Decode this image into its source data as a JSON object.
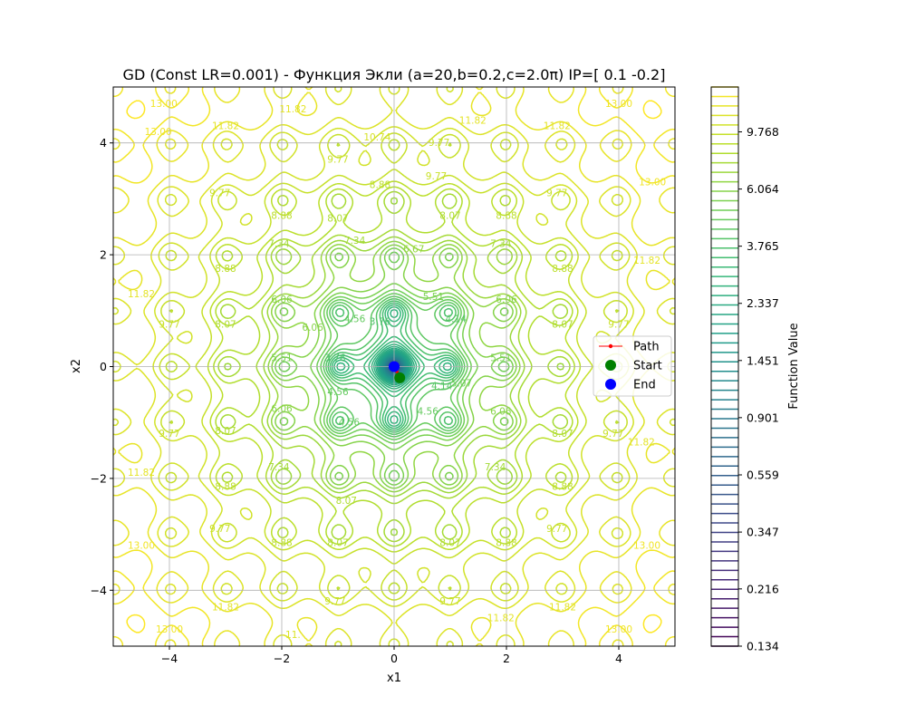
{
  "chart_data": {
    "type": "contour",
    "title": "GD (Const LR=0.001) - Функция Экли (a=20,b=0.2,c=2.0π) IP=[ 0.1 -0.2]",
    "xlabel": "x1",
    "ylabel": "x2",
    "xlim": [
      -5,
      5
    ],
    "ylim": [
      -5,
      5
    ],
    "x_ticks": [
      -4,
      -2,
      0,
      2,
      4
    ],
    "y_ticks": [
      -4,
      -2,
      0,
      2,
      4
    ],
    "x_tick_labels": [
      "−4",
      "−2",
      "0",
      "2",
      "4"
    ],
    "y_tick_labels": [
      "−4",
      "−2",
      "0",
      "2",
      "4"
    ],
    "grid": true,
    "function": {
      "a": 20,
      "b": 0.2,
      "c_over_pi": 2.0
    },
    "contour_labels": [
      {
        "text": "13.00",
        "x": -4.1,
        "y": 4.7
      },
      {
        "text": "13.00",
        "x": -4.2,
        "y": 4.2
      },
      {
        "text": "11.82",
        "x": -3.0,
        "y": 4.3
      },
      {
        "text": "11.82",
        "x": -1.8,
        "y": 4.6
      },
      {
        "text": "10.74",
        "x": -0.3,
        "y": 4.1
      },
      {
        "text": "9.77",
        "x": 0.8,
        "y": 4.0
      },
      {
        "text": "11.82",
        "x": 1.4,
        "y": 4.4
      },
      {
        "text": "11.82",
        "x": 2.9,
        "y": 4.3
      },
      {
        "text": "13.00",
        "x": 4.0,
        "y": 4.7
      },
      {
        "text": "9.77",
        "x": -1.0,
        "y": 3.7
      },
      {
        "text": "9.77",
        "x": 0.75,
        "y": 3.4
      },
      {
        "text": "9.77",
        "x": -3.1,
        "y": 3.1
      },
      {
        "text": "8.88",
        "x": -0.25,
        "y": 3.25
      },
      {
        "text": "9.77",
        "x": 2.9,
        "y": 3.1
      },
      {
        "text": "13.00",
        "x": 4.6,
        "y": 3.3
      },
      {
        "text": "8.88",
        "x": -2.0,
        "y": 2.7
      },
      {
        "text": "8.07",
        "x": -1.0,
        "y": 2.65
      },
      {
        "text": "8.07",
        "x": 1.0,
        "y": 2.7
      },
      {
        "text": "8.88",
        "x": 2.0,
        "y": 2.7
      },
      {
        "text": "7.34",
        "x": -2.05,
        "y": 2.2
      },
      {
        "text": "7.34",
        "x": -0.7,
        "y": 2.25
      },
      {
        "text": "6.67",
        "x": 0.35,
        "y": 2.1
      },
      {
        "text": "7.34",
        "x": 1.9,
        "y": 2.2
      },
      {
        "text": "8.88",
        "x": -3.0,
        "y": 1.75
      },
      {
        "text": "8.88",
        "x": 3.0,
        "y": 1.75
      },
      {
        "text": "11.82",
        "x": 4.5,
        "y": 1.9
      },
      {
        "text": "11.82",
        "x": -4.5,
        "y": 1.3
      },
      {
        "text": "6.06",
        "x": -2.0,
        "y": 1.2
      },
      {
        "text": "5.51",
        "x": 0.7,
        "y": 1.25
      },
      {
        "text": "6.06",
        "x": 2.0,
        "y": 1.2
      },
      {
        "text": "6.06",
        "x": -1.45,
        "y": 0.7
      },
      {
        "text": "4.56",
        "x": -0.7,
        "y": 0.85
      },
      {
        "text": "3.76",
        "x": -0.25,
        "y": 0.8
      },
      {
        "text": "4.14",
        "x": 1.1,
        "y": 0.85
      },
      {
        "text": "9.77",
        "x": -4.0,
        "y": 0.75
      },
      {
        "text": "8.07",
        "x": -3.0,
        "y": 0.75
      },
      {
        "text": "8.07",
        "x": 3.0,
        "y": 0.75
      },
      {
        "text": "9.77",
        "x": 4.0,
        "y": 0.75
      },
      {
        "text": "5.51",
        "x": -2.0,
        "y": 0.15
      },
      {
        "text": "3.76",
        "x": -1.05,
        "y": 0.15
      },
      {
        "text": "5.51",
        "x": 1.9,
        "y": 0.15
      },
      {
        "text": "4.14",
        "x": 0.85,
        "y": -0.35
      },
      {
        "text": "5.07",
        "x": 1.2,
        "y": -0.3
      },
      {
        "text": "4.56",
        "x": -1.0,
        "y": -0.45
      },
      {
        "text": "6.06",
        "x": -2.0,
        "y": -0.75
      },
      {
        "text": "6.06",
        "x": 1.9,
        "y": -0.8
      },
      {
        "text": "4.56",
        "x": 0.6,
        "y": -0.8
      },
      {
        "text": "4.56",
        "x": -0.8,
        "y": -1.0
      },
      {
        "text": "9.77",
        "x": -4.0,
        "y": -1.2
      },
      {
        "text": "8.07",
        "x": -3.0,
        "y": -1.15
      },
      {
        "text": "8.07",
        "x": 3.0,
        "y": -1.2
      },
      {
        "text": "9.77",
        "x": 3.9,
        "y": -1.2
      },
      {
        "text": "11.82",
        "x": 4.4,
        "y": -1.35
      },
      {
        "text": "11.82",
        "x": -4.5,
        "y": -1.9
      },
      {
        "text": "7.34",
        "x": -2.05,
        "y": -1.8
      },
      {
        "text": "7.34",
        "x": 1.8,
        "y": -1.8
      },
      {
        "text": "8.88",
        "x": -3.0,
        "y": -2.15
      },
      {
        "text": "8.07",
        "x": -0.85,
        "y": -2.4
      },
      {
        "text": "8.88",
        "x": 3.0,
        "y": -2.15
      },
      {
        "text": "9.77",
        "x": -3.1,
        "y": -2.9
      },
      {
        "text": "9.77",
        "x": 2.9,
        "y": -2.9
      },
      {
        "text": "13.00",
        "x": -4.5,
        "y": -3.2
      },
      {
        "text": "8.88",
        "x": -2.0,
        "y": -3.15
      },
      {
        "text": "8.07",
        "x": -1.0,
        "y": -3.15
      },
      {
        "text": "8.07",
        "x": 1.0,
        "y": -3.15
      },
      {
        "text": "8.88",
        "x": 2.0,
        "y": -3.15
      },
      {
        "text": "13.00",
        "x": 4.5,
        "y": -3.2
      },
      {
        "text": "9.77",
        "x": -1.05,
        "y": -4.2
      },
      {
        "text": "9.77",
        "x": 1.0,
        "y": -4.2
      },
      {
        "text": "11.82",
        "x": -3.0,
        "y": -4.3
      },
      {
        "text": "11.82",
        "x": 3.0,
        "y": -4.3
      },
      {
        "text": "13.00",
        "x": -4.0,
        "y": -4.7
      },
      {
        "text": "11.82",
        "x": 1.9,
        "y": -4.5
      },
      {
        "text": "13.00",
        "x": 4.0,
        "y": -4.7
      },
      {
        "text": "11.",
        "x": -1.8,
        "y": -4.8
      }
    ],
    "path": [
      [
        0.1,
        -0.2
      ],
      [
        0.09,
        -0.18
      ],
      [
        0.07,
        -0.13
      ],
      [
        0.05,
        -0.09
      ],
      [
        0.03,
        -0.05
      ],
      [
        0.015,
        -0.025
      ],
      [
        0.005,
        -0.008
      ],
      [
        0.0,
        0.0
      ]
    ],
    "start": {
      "x": 0.1,
      "y": -0.2
    },
    "end": {
      "x": 0.0,
      "y": 0.0
    },
    "legend": {
      "position": "center-right",
      "entries": [
        {
          "label": "Path",
          "color": "#ff0000"
        },
        {
          "label": "Start",
          "color": "#008000"
        },
        {
          "label": "End",
          "color": "#0000ff"
        }
      ]
    },
    "colorbar": {
      "label": "Function Value",
      "tick_labels": [
        "9.768",
        "6.064",
        "3.765",
        "2.337",
        "1.451",
        "0.901",
        "0.559",
        "0.347",
        "0.216",
        "0.134"
      ]
    },
    "colormap": [
      "#440154",
      "#482878",
      "#3e4989",
      "#31688e",
      "#26828e",
      "#1f9e89",
      "#35b779",
      "#6ece58",
      "#b5de2b",
      "#fde725"
    ]
  }
}
